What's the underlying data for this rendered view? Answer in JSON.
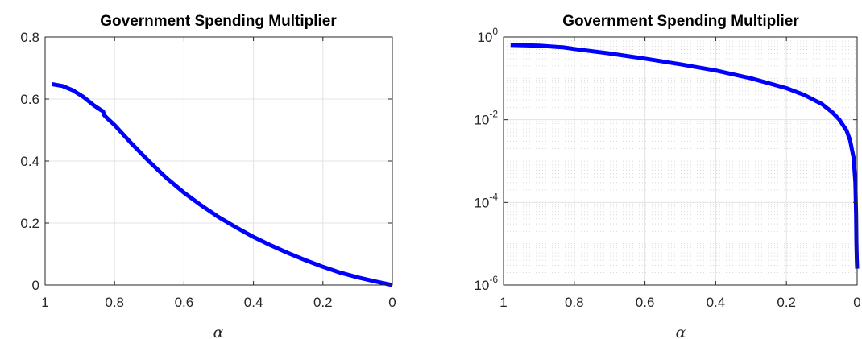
{
  "chart_data": [
    {
      "type": "line",
      "title": "Government Spending Multiplier",
      "xlabel": "α",
      "ylabel": "",
      "xlim": [
        1,
        0
      ],
      "x_reversed": true,
      "ylim": [
        0,
        0.8
      ],
      "yscale": "linear",
      "grid": true,
      "xticks": [
        1,
        0.8,
        0.6,
        0.4,
        0.2,
        0
      ],
      "xtick_labels": [
        "1",
        "0.8",
        "0.6",
        "0.4",
        "0.2",
        "0"
      ],
      "yticks": [
        0,
        0.2,
        0.4,
        0.6,
        0.8
      ],
      "ytick_labels": [
        "0",
        "0.2",
        "0.4",
        "0.6",
        "0.8"
      ],
      "color": "#0000ff",
      "series": [
        {
          "x": [
            0.98,
            0.95,
            0.92,
            0.89,
            0.86,
            0.84,
            0.833,
            0.83,
            0.82,
            0.8,
            0.75,
            0.7,
            0.65,
            0.6,
            0.55,
            0.5,
            0.45,
            0.4,
            0.35,
            0.3,
            0.25,
            0.2,
            0.15,
            0.1,
            0.05,
            0.0
          ],
          "y": [
            0.648,
            0.642,
            0.628,
            0.607,
            0.58,
            0.565,
            0.56,
            0.548,
            0.537,
            0.516,
            0.455,
            0.398,
            0.345,
            0.298,
            0.257,
            0.219,
            0.186,
            0.155,
            0.128,
            0.103,
            0.08,
            0.059,
            0.04,
            0.025,
            0.012,
            0.0
          ]
        }
      ]
    },
    {
      "type": "line",
      "title": "Government Spending Multiplier",
      "xlabel": "α",
      "ylabel": "",
      "xlim": [
        1,
        0
      ],
      "x_reversed": true,
      "ylim": [
        1e-06,
        1
      ],
      "yscale": "log",
      "grid": true,
      "xticks": [
        1,
        0.8,
        0.6,
        0.4,
        0.2,
        0
      ],
      "xtick_labels": [
        "1",
        "0.8",
        "0.6",
        "0.4",
        "0.2",
        "0"
      ],
      "yticks": [
        1e-06,
        0.0001,
        0.01,
        1
      ],
      "ytick_labels": [
        {
          "base": "10",
          "exp": "-6"
        },
        {
          "base": "10",
          "exp": "-4"
        },
        {
          "base": "10",
          "exp": "-2"
        },
        {
          "base": "10",
          "exp": "0"
        }
      ],
      "color": "#0000ff",
      "series": [
        {
          "x": [
            0.98,
            0.9,
            0.83,
            0.8,
            0.7,
            0.6,
            0.5,
            0.4,
            0.3,
            0.2,
            0.15,
            0.1,
            0.07,
            0.05,
            0.03,
            0.02,
            0.01,
            0.005,
            0.003,
            0.002,
            0.001,
            0.0
          ],
          "y": [
            0.64,
            0.62,
            0.56,
            0.515,
            0.4,
            0.3,
            0.22,
            0.155,
            0.1,
            0.058,
            0.04,
            0.024,
            0.015,
            0.01,
            0.0055,
            0.0032,
            0.0012,
            0.0003,
            5e-05,
            1e-05,
            4e-06,
            2.5e-06
          ]
        }
      ]
    }
  ]
}
